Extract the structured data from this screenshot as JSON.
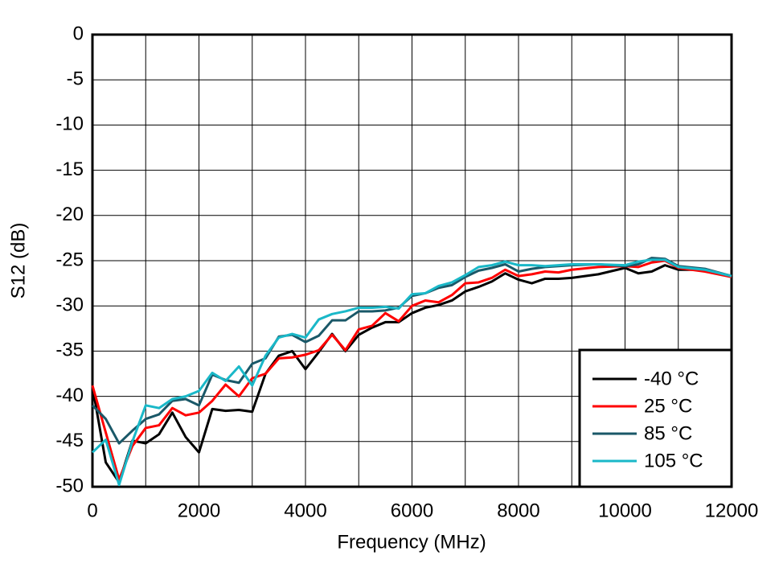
{
  "chart_data": {
    "type": "line",
    "xlabel": "Frequency (MHz)",
    "ylabel": "S12 (dB)",
    "xlim": [
      0,
      12000
    ],
    "ylim": [
      -50,
      0
    ],
    "xticks": [
      0,
      2000,
      4000,
      6000,
      8000,
      10000,
      12000
    ],
    "x_minor_grid": [
      1000,
      3000,
      5000,
      7000,
      9000,
      11000
    ],
    "yticks": [
      0,
      -5,
      -10,
      -15,
      -20,
      -25,
      -30,
      -35,
      -40,
      -45,
      -50
    ],
    "grid": true,
    "legend": "lower right",
    "x": [
      0,
      250,
      500,
      750,
      1000,
      1250,
      1500,
      1750,
      2000,
      2250,
      2500,
      2750,
      3000,
      3250,
      3500,
      3750,
      4000,
      4250,
      4500,
      4750,
      5000,
      5250,
      5500,
      5750,
      6000,
      6250,
      6500,
      6750,
      7000,
      7250,
      7500,
      7750,
      8000,
      8250,
      8500,
      8750,
      9000,
      9500,
      10000,
      10250,
      10500,
      10750,
      11000,
      11500,
      12000
    ],
    "series": [
      {
        "name": "-40 °C",
        "color": "#000000",
        "values": [
          -38.9,
          -47.3,
          -49.5,
          -44.9,
          -45.2,
          -44.2,
          -41.8,
          -44.5,
          -46.2,
          -41.4,
          -41.6,
          -41.5,
          -41.7,
          -37.5,
          -35.5,
          -35,
          -37,
          -35.1,
          -33.1,
          -35,
          -33.2,
          -32.4,
          -31.8,
          -31.8,
          -30.8,
          -30.2,
          -29.9,
          -29.4,
          -28.4,
          -27.9,
          -27.3,
          -26.4,
          -27.1,
          -27.5,
          -27,
          -27,
          -26.9,
          -26.5,
          -25.8,
          -26.4,
          -26.2,
          -25.5,
          -26,
          -26,
          -26.7
        ]
      },
      {
        "name": "25 °C",
        "color": "#ff0000",
        "values": [
          -38.8,
          -44,
          -49.2,
          -45.5,
          -43.5,
          -43.2,
          -41.3,
          -42.1,
          -41.8,
          -40.5,
          -38.7,
          -40,
          -38,
          -37.5,
          -35.8,
          -35.7,
          -35.4,
          -34.9,
          -33.2,
          -34.9,
          -32.6,
          -32.2,
          -30.8,
          -31.7,
          -30,
          -29.4,
          -29.6,
          -28.8,
          -27.5,
          -27.4,
          -26.9,
          -26,
          -26.7,
          -26.5,
          -26.2,
          -26.3,
          -26,
          -25.7,
          -25.6,
          -25.7,
          -25.2,
          -25,
          -25.8,
          -26.2,
          -26.8
        ]
      },
      {
        "name": "85 °C",
        "color": "#1a5868",
        "values": [
          -41,
          -42.5,
          -45.2,
          -43.8,
          -42.5,
          -42,
          -40.5,
          -40.3,
          -41,
          -37.6,
          -38.2,
          -38.5,
          -36.4,
          -35.8,
          -33.4,
          -33.2,
          -34,
          -33.3,
          -31.6,
          -31.6,
          -30.6,
          -30.6,
          -30.5,
          -30.2,
          -28.9,
          -28.6,
          -28,
          -27.7,
          -26.8,
          -26.1,
          -25.8,
          -25.4,
          -26.2,
          -25.9,
          -25.7,
          -25.6,
          -25.5,
          -25.4,
          -25.6,
          -25.4,
          -24.7,
          -24.8,
          -25.6,
          -25.9,
          -26.7
        ]
      },
      {
        "name": "105 °C",
        "color": "#1ab8c8",
        "values": [
          -46.2,
          -44.8,
          -49.8,
          -45,
          -41,
          -41.3,
          -40.3,
          -40,
          -39.4,
          -37.4,
          -38.3,
          -36.7,
          -38.8,
          -35.5,
          -33.5,
          -33.1,
          -33.5,
          -31.5,
          -30.9,
          -30.6,
          -30.2,
          -30.2,
          -30.1,
          -30.3,
          -28.7,
          -28.6,
          -27.8,
          -27.4,
          -26.6,
          -25.7,
          -25.5,
          -25.1,
          -25.5,
          -25.5,
          -25.6,
          -25.5,
          -25.4,
          -25.4,
          -25.5,
          -25.1,
          -24.9,
          -24.9,
          -25.7,
          -26,
          -26.7
        ]
      }
    ]
  }
}
